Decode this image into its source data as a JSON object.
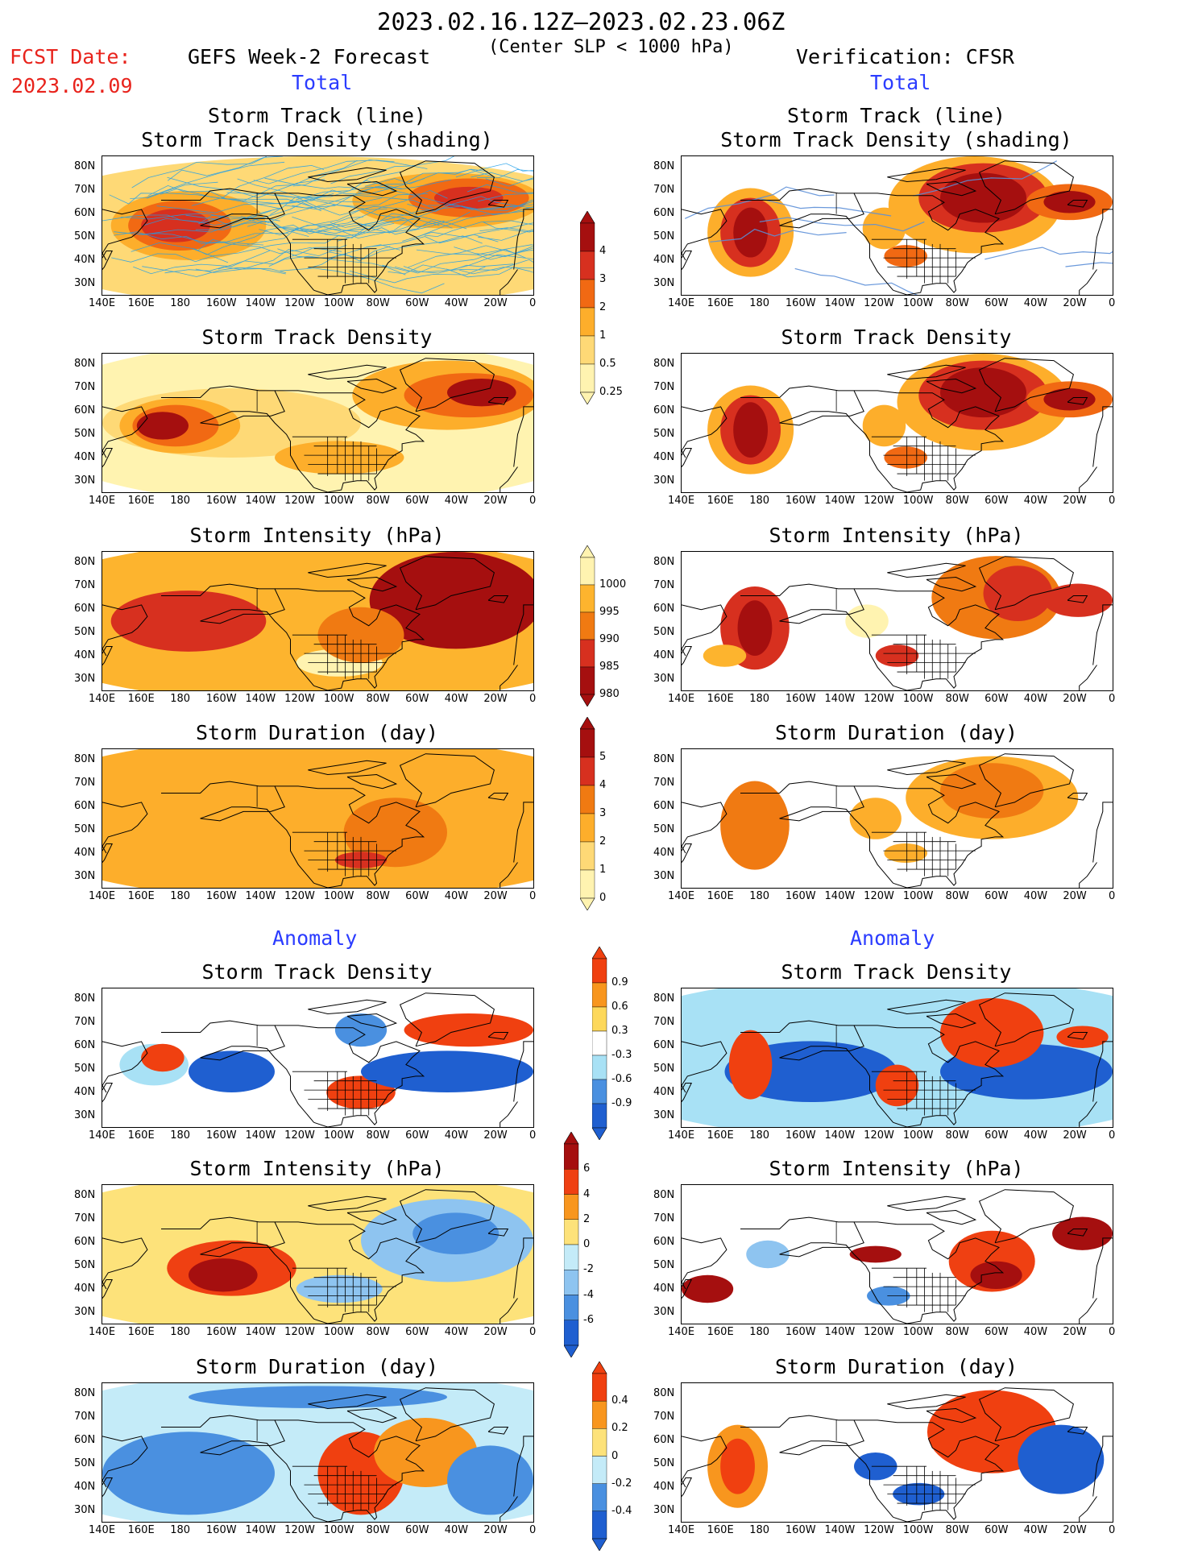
{
  "header": {
    "period": "2023.02.16.12Z–2023.02.23.06Z",
    "center_slp": "(Center SLP < 1000 hPa)",
    "fcst_label": "FCST Date:",
    "fcst_date": "2023.02.09",
    "left_title": "GEFS Week-2 Forecast",
    "right_title": "Verification: CFSR",
    "total_label": "Total",
    "anomaly_label": "Anomaly"
  },
  "panel_titles": {
    "track_line": "Storm Track (line)",
    "track_shading": "Storm Track Density (shading)",
    "density": "Storm Track Density",
    "intensity": "Storm Intensity (hPa)",
    "duration": "Storm Duration (day)"
  },
  "lat_ticks": [
    "80N",
    "70N",
    "60N",
    "50N",
    "40N",
    "30N"
  ],
  "lon_ticks": [
    "140E",
    "160E",
    "180",
    "160W",
    "140W",
    "120W",
    "100W",
    "80W",
    "60W",
    "40W",
    "20W",
    "0"
  ],
  "colorbars": {
    "density_total": {
      "labels": [
        "4",
        "3",
        "2",
        "1",
        "0.5",
        "0.25"
      ],
      "colors": [
        "#a50f0f",
        "#d7301f",
        "#f16913",
        "#fdae2b",
        "#fed976",
        "#fff3b0"
      ]
    },
    "intensity_total": {
      "labels": [
        "1000",
        "995",
        "990",
        "985",
        "980"
      ],
      "colors": [
        "#fff3b0",
        "#fdb42e",
        "#f07a12",
        "#d7301f",
        "#a50f0f"
      ]
    },
    "duration_total": {
      "labels": [
        "5",
        "4",
        "3",
        "2",
        "1",
        "0"
      ],
      "colors": [
        "#a50f0f",
        "#d7301f",
        "#f07a12",
        "#fdae2b",
        "#fed976",
        "#fff3b0"
      ]
    },
    "density_anom": {
      "labels": [
        "0.9",
        "0.6",
        "0.3",
        "-0.3",
        "-0.6",
        "-0.9"
      ],
      "colors": [
        "#f04010",
        "#f8961e",
        "#fdd85a",
        "#ffffff",
        "#a8e1f5",
        "#4a90e0",
        "#1f5fd0"
      ]
    },
    "intensity_anom": {
      "labels": [
        "6",
        "4",
        "2",
        "0",
        "-2",
        "-4",
        "-6"
      ],
      "colors": [
        "#a50f0f",
        "#ef4012",
        "#f8961e",
        "#fde27a",
        "#c4ebf8",
        "#8ec4f0",
        "#4a90e0",
        "#1f5fd0"
      ]
    },
    "duration_anom": {
      "labels": [
        "0.4",
        "0.2",
        "0",
        "-0.2",
        "-0.4"
      ],
      "colors": [
        "#f04010",
        "#f8961e",
        "#fde27a",
        "#c4ebf8",
        "#4a90e0",
        "#1f5fd0"
      ]
    }
  },
  "chart_data": {
    "type": "heatmap",
    "description_units": {
      "density": "storms",
      "intensity": "hPa",
      "duration": "day"
    },
    "lon_range": [
      "140E",
      "0"
    ],
    "lat_range": [
      "25N",
      "85N"
    ],
    "panels": [
      {
        "column": "GEFS Week-2 Forecast",
        "section": "Total",
        "field": "Storm Track (line) / Storm Track Density (shading)"
      },
      {
        "column": "Verification: CFSR",
        "section": "Total",
        "field": "Storm Track (line) / Storm Track Density (shading)"
      },
      {
        "column": "GEFS Week-2 Forecast",
        "section": "Total",
        "field": "Storm Track Density"
      },
      {
        "column": "Verification: CFSR",
        "section": "Total",
        "field": "Storm Track Density"
      },
      {
        "column": "GEFS Week-2 Forecast",
        "section": "Total",
        "field": "Storm Intensity (hPa)"
      },
      {
        "column": "Verification: CFSR",
        "section": "Total",
        "field": "Storm Intensity (hPa)"
      },
      {
        "column": "GEFS Week-2 Forecast",
        "section": "Total",
        "field": "Storm Duration (day)"
      },
      {
        "column": "Verification: CFSR",
        "section": "Total",
        "field": "Storm Duration (day)"
      },
      {
        "column": "GEFS Week-2 Forecast",
        "section": "Anomaly",
        "field": "Storm Track Density"
      },
      {
        "column": "Verification: CFSR",
        "section": "Anomaly",
        "field": "Storm Track Density"
      },
      {
        "column": "GEFS Week-2 Forecast",
        "section": "Anomaly",
        "field": "Storm Intensity (hPa)"
      },
      {
        "column": "Verification: CFSR",
        "section": "Anomaly",
        "field": "Storm Intensity (hPa)"
      },
      {
        "column": "GEFS Week-2 Forecast",
        "section": "Anomaly",
        "field": "Storm Duration (day)"
      },
      {
        "column": "Verification: CFSR",
        "section": "Anomaly",
        "field": "Storm Duration (day)"
      }
    ]
  }
}
